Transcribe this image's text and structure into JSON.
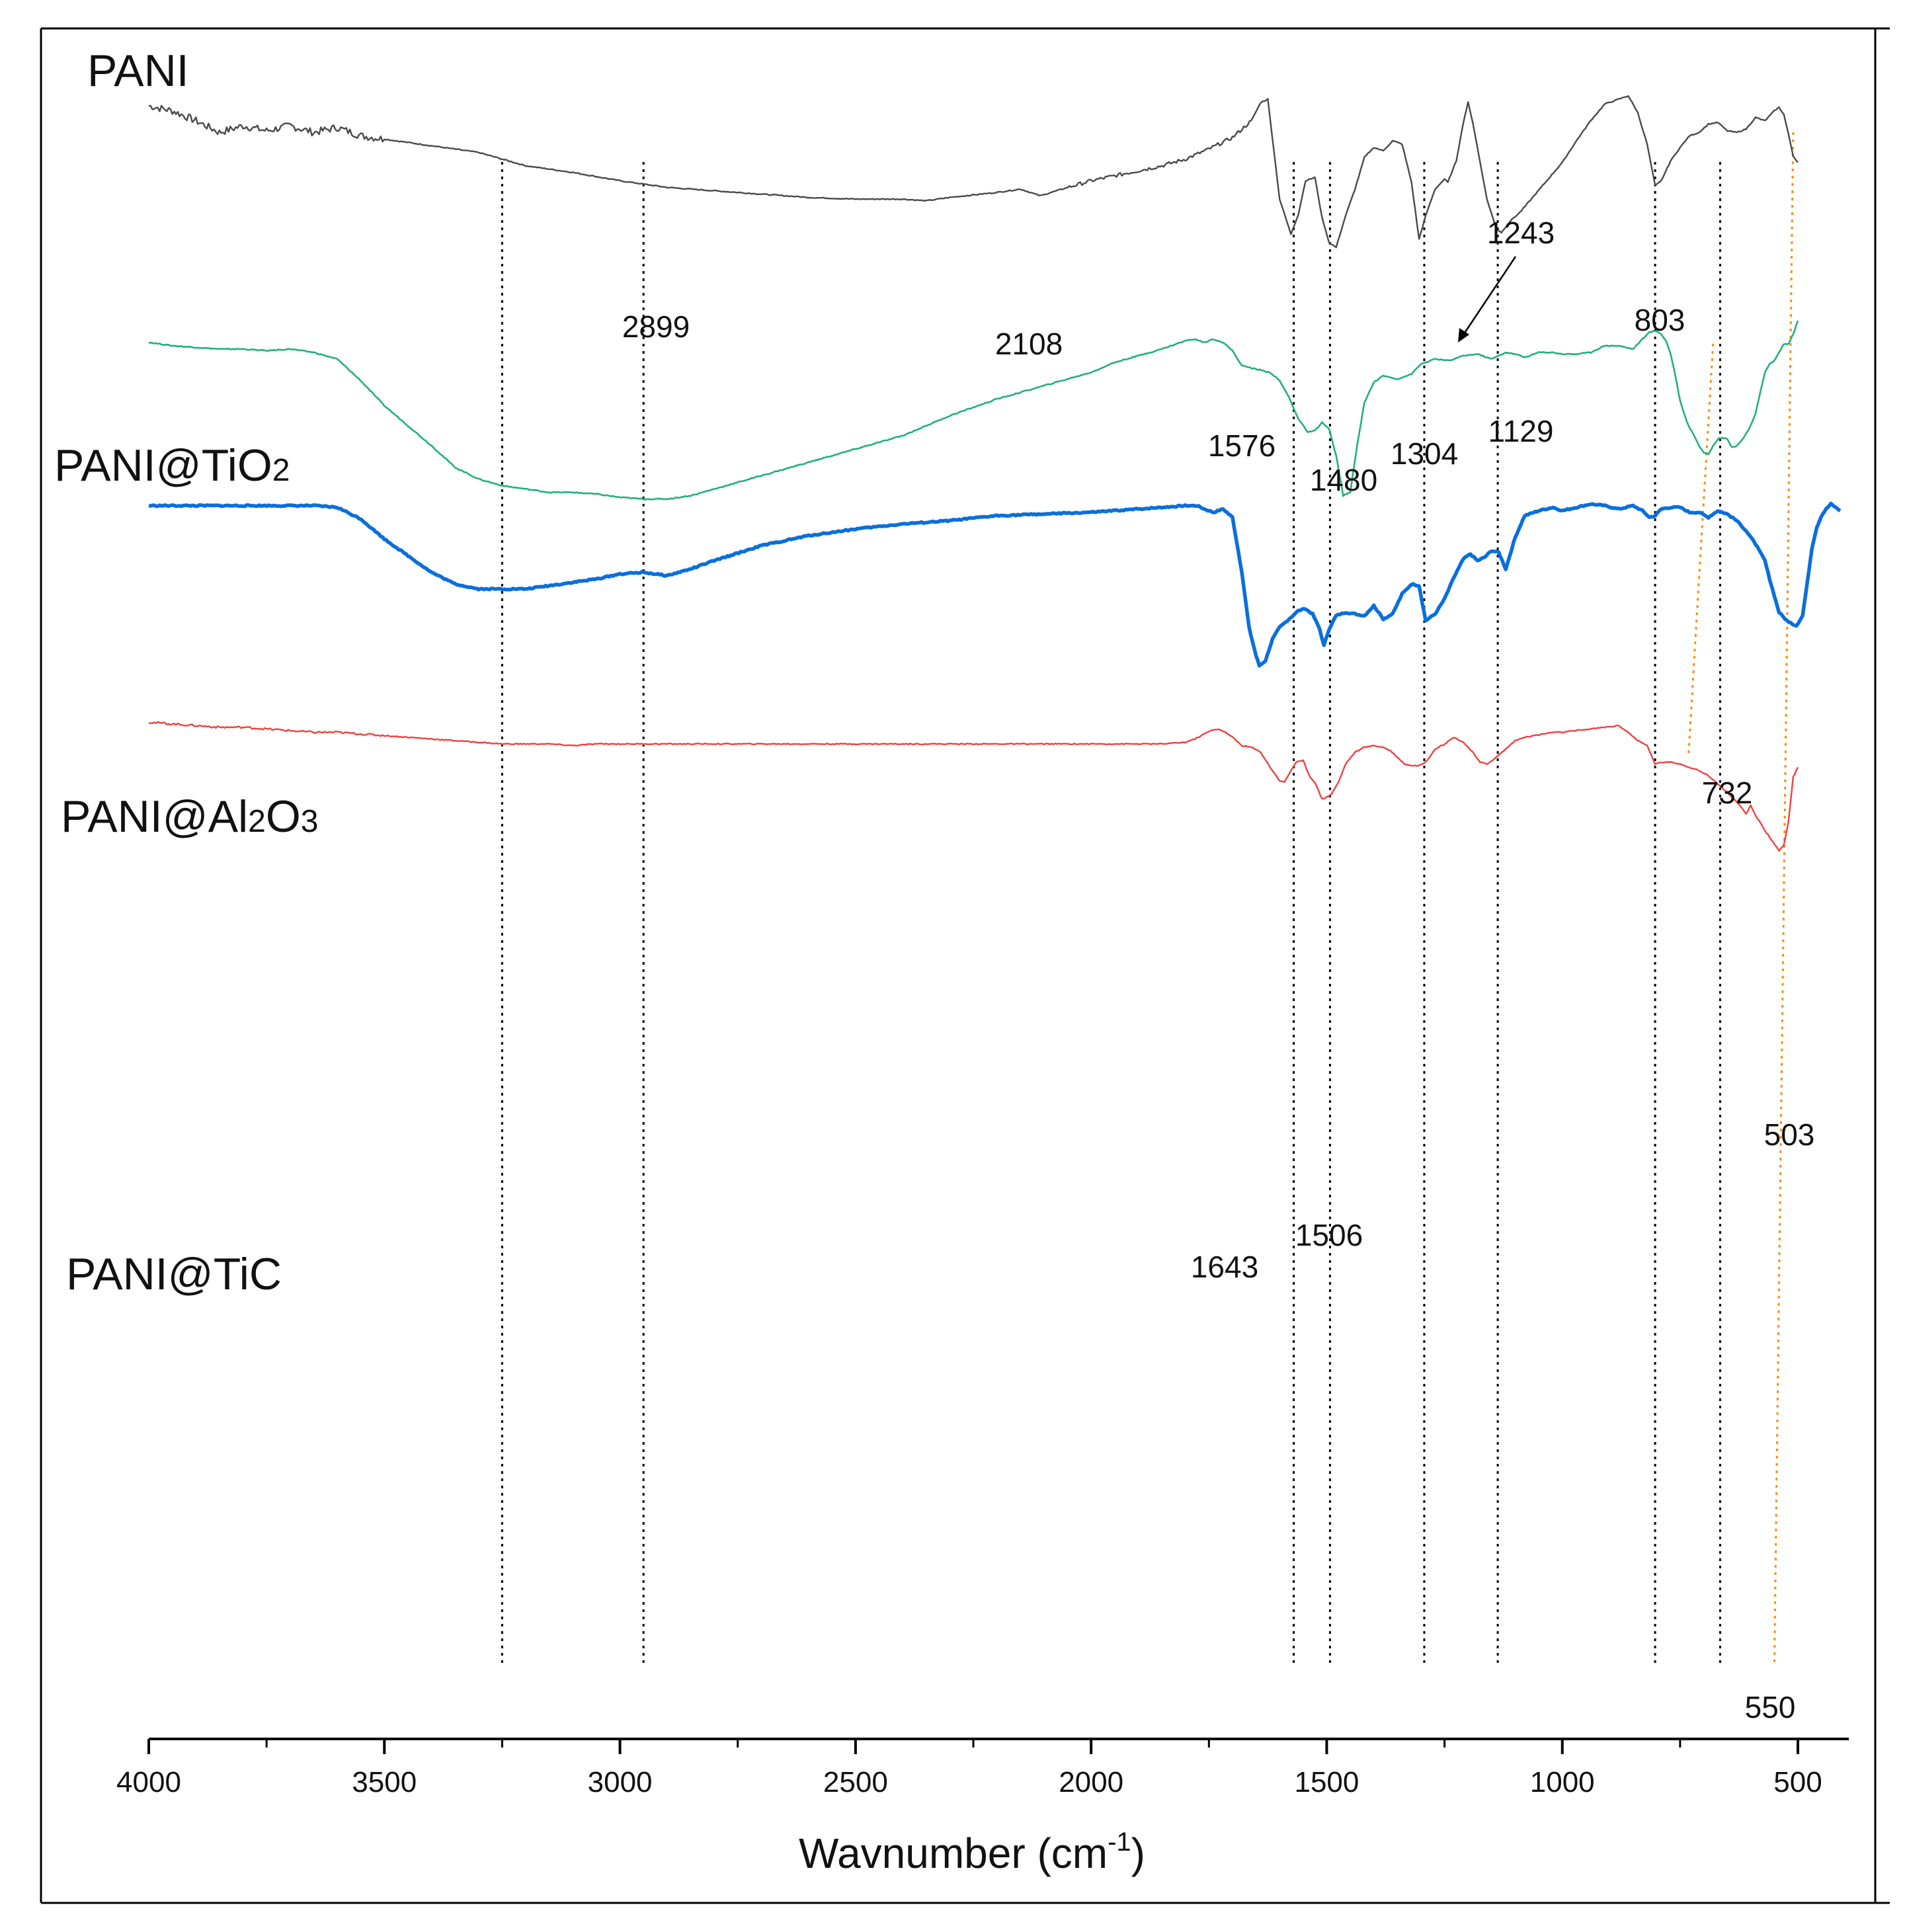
{
  "chart_data": {
    "type": "line",
    "xlabel": "Wavnumber (cm",
    "xlabel_sup": "-1",
    "xlabel_close": ")",
    "xlim": [
      4000,
      400
    ],
    "x_reversed": true,
    "x_ticks": [
      4000,
      3500,
      3000,
      2500,
      2000,
      1500,
      1000,
      500
    ],
    "x_tick_labels": [
      "4000",
      "3500",
      "3000",
      "2500",
      "2000",
      "1500",
      "1000",
      "500"
    ],
    "y_axis_shown": false,
    "y_units": "relative transmittance, curves vertically offset",
    "grid": false,
    "reference_lines": [
      {
        "x": 3250,
        "style": "dotted",
        "color": "#000000"
      },
      {
        "x": 2950,
        "style": "dotted",
        "color": "#000000"
      },
      {
        "x": 1570,
        "style": "dotted",
        "color": "#000000"
      },
      {
        "x": 1493,
        "style": "dotted",
        "color": "#000000"
      },
      {
        "x": 1293,
        "style": "dotted",
        "color": "#000000"
      },
      {
        "x": 1137,
        "style": "dotted",
        "color": "#000000"
      },
      {
        "x": 803,
        "style": "dotted",
        "color": "#000000"
      },
      {
        "x": 665,
        "style": "dotted",
        "color": "#000000"
      },
      {
        "x": 550,
        "x_top": 510,
        "style": "dotted",
        "color": "#ff8c00"
      },
      {
        "x": 732,
        "x_top": 680,
        "style": "dotted",
        "color": "#ff8c00",
        "segment": "upper"
      }
    ],
    "series": [
      {
        "name": "PANI",
        "color": "#4a4a4a",
        "x": [
          4000,
          3950,
          3900,
          3850,
          3800,
          3750,
          3700,
          3650,
          3600,
          3550,
          3500,
          3400,
          3300,
          3250,
          3200,
          3100,
          3000,
          2950,
          2899,
          2800,
          2700,
          2600,
          2500,
          2400,
          2350,
          2300,
          2200,
          2150,
          2108,
          2050,
          2000,
          1950,
          1900,
          1850,
          1800,
          1750,
          1700,
          1660,
          1640,
          1625,
          1600,
          1576,
          1560,
          1545,
          1525,
          1510,
          1495,
          1480,
          1460,
          1440,
          1420,
          1400,
          1380,
          1360,
          1340,
          1320,
          1304,
          1290,
          1270,
          1250,
          1243,
          1225,
          1210,
          1200,
          1190,
          1175,
          1160,
          1140,
          1129,
          1110,
          1090,
          1060,
          1030,
          1000,
          970,
          940,
          910,
          880,
          860,
          840,
          820,
          803,
          790,
          770,
          750,
          730,
          710,
          690,
          670,
          650,
          630,
          610,
          590,
          570,
          550,
          540,
          530,
          520,
          510,
          500
        ],
        "y": [
          0.0,
          -0.3,
          -0.9,
          -1.6,
          -1.2,
          -1.5,
          -1.2,
          -1.6,
          -1.3,
          -1.8,
          -2.0,
          -2.4,
          -2.8,
          -3.2,
          -3.6,
          -4.0,
          -4.5,
          -4.7,
          -4.9,
          -5.1,
          -5.3,
          -5.5,
          -5.6,
          -5.6,
          -5.7,
          -5.5,
          -5.2,
          -5.0,
          -5.4,
          -4.9,
          -4.5,
          -4.2,
          -3.9,
          -3.6,
          -3.2,
          -2.6,
          -1.9,
          -0.9,
          0.2,
          0.4,
          -5.6,
          -7.7,
          -6.5,
          -4.5,
          -4.3,
          -6.7,
          -8.2,
          -8.5,
          -6.6,
          -5.0,
          -3.1,
          -2.5,
          -2.7,
          -2.1,
          -2.3,
          -4.6,
          -8.0,
          -6.6,
          -5.0,
          -4.4,
          -4.6,
          -3.3,
          -1.0,
          0.2,
          -1.0,
          -3.3,
          -5.6,
          -7.4,
          -7.6,
          -6.9,
          -6.4,
          -5.4,
          -4.4,
          -3.4,
          -2.1,
          -0.9,
          0.1,
          0.4,
          0.6,
          -0.4,
          -2.3,
          -4.8,
          -4.5,
          -3.3,
          -2.5,
          -1.8,
          -1.6,
          -1.1,
          -1.0,
          -1.5,
          -1.6,
          -1.4,
          -0.7,
          -0.9,
          -0.3,
          -0.1,
          -0.5,
          -1.7,
          -3.0,
          -3.4
        ]
      },
      {
        "name": "PANI@TiO₂",
        "color": "#21b07a",
        "x": [
          4000,
          3950,
          3900,
          3850,
          3800,
          3750,
          3700,
          3650,
          3600,
          3550,
          3500,
          3400,
          3350,
          3300,
          3250,
          3200,
          3150,
          3100,
          3050,
          3000,
          2950,
          2900,
          2850,
          2800,
          2700,
          2600,
          2500,
          2400,
          2300,
          2200,
          2100,
          2000,
          1950,
          1900,
          1850,
          1800,
          1780,
          1760,
          1740,
          1720,
          1700,
          1680,
          1650,
          1620,
          1600,
          1580,
          1560,
          1540,
          1525,
          1510,
          1495,
          1480,
          1465,
          1450,
          1435,
          1420,
          1400,
          1380,
          1350,
          1320,
          1300,
          1270,
          1240,
          1210,
          1180,
          1150,
          1120,
          1100,
          1080,
          1050,
          1020,
          1000,
          970,
          940,
          910,
          880,
          850,
          830,
          815,
          803,
          790,
          780,
          770,
          760,
          750,
          740,
          732,
          720,
          710,
          700,
          690,
          680,
          670,
          660,
          650,
          640,
          630,
          620,
          610,
          600,
          590,
          580,
          570,
          560,
          550,
          540,
          530,
          520,
          510,
          500
        ],
        "y": [
          -14.2,
          -14.4,
          -14.5,
          -14.6,
          -14.6,
          -14.7,
          -14.6,
          -14.8,
          -15.2,
          -16.5,
          -18.0,
          -20.4,
          -21.7,
          -22.4,
          -22.8,
          -23.0,
          -23.2,
          -23.2,
          -23.3,
          -23.5,
          -23.6,
          -23.6,
          -23.4,
          -23.0,
          -22.2,
          -21.4,
          -20.6,
          -19.8,
          -18.6,
          -17.6,
          -16.8,
          -16.0,
          -15.4,
          -15.0,
          -14.6,
          -14.1,
          -14.0,
          -14.2,
          -14.0,
          -14.2,
          -14.7,
          -15.6,
          -15.8,
          -16.0,
          -16.5,
          -17.5,
          -18.8,
          -19.6,
          -19.5,
          -19.0,
          -19.4,
          -21.0,
          -23.4,
          -23.2,
          -20.3,
          -17.8,
          -16.6,
          -16.2,
          -16.4,
          -16.1,
          -15.5,
          -15.2,
          -15.3,
          -15.0,
          -14.9,
          -15.2,
          -14.8,
          -14.9,
          -15.1,
          -14.8,
          -14.8,
          -14.9,
          -14.9,
          -14.8,
          -14.4,
          -14.4,
          -14.6,
          -14.0,
          -13.6,
          -13.5,
          -13.7,
          -14.1,
          -14.9,
          -16.2,
          -17.7,
          -18.6,
          -19.2,
          -19.8,
          -20.4,
          -20.8,
          -20.9,
          -20.4,
          -20.0,
          -19.9,
          -20.0,
          -20.5,
          -20.4,
          -20.1,
          -19.7,
          -19.2,
          -18.5,
          -17.2,
          -16.0,
          -15.5,
          -15.3,
          -14.8,
          -14.3,
          -14.3,
          -13.7,
          -12.9
        ]
      },
      {
        "name": "PANI@Al₂O₃",
        "color": "#0a6fdc",
        "x": [
          4000,
          3950,
          3900,
          3850,
          3800,
          3750,
          3700,
          3650,
          3600,
          3550,
          3500,
          3450,
          3400,
          3350,
          3300,
          3250,
          3200,
          3150,
          3100,
          3050,
          3000,
          2950,
          2900,
          2850,
          2800,
          2700,
          2600,
          2500,
          2400,
          2300,
          2200,
          2100,
          2000,
          1950,
          1900,
          1850,
          1800,
          1775,
          1760,
          1740,
          1720,
          1700,
          1680,
          1665,
          1650,
          1643,
          1630,
          1615,
          1600,
          1580,
          1560,
          1545,
          1530,
          1515,
          1506,
          1495,
          1480,
          1460,
          1440,
          1420,
          1400,
          1380,
          1360,
          1340,
          1320,
          1304,
          1290,
          1270,
          1250,
          1230,
          1210,
          1195,
          1180,
          1165,
          1150,
          1135,
          1120,
          1100,
          1080,
          1050,
          1020,
          1000,
          970,
          940,
          910,
          880,
          850,
          830,
          815,
          803,
          790,
          770,
          750,
          730,
          710,
          690,
          670,
          650,
          630,
          610,
          590,
          570,
          560,
          550,
          540,
          520,
          503,
          490,
          480,
          470,
          460,
          450,
          440,
          430,
          420,
          410
        ],
        "y": [
          -24.0,
          -24.0,
          -24.0,
          -24.0,
          -24.0,
          -24.0,
          -24.0,
          -24.0,
          -24.1,
          -24.8,
          -26.0,
          -27.0,
          -28.0,
          -28.7,
          -29.0,
          -29.0,
          -29.0,
          -28.8,
          -28.6,
          -28.4,
          -28.1,
          -28.0,
          -28.2,
          -27.8,
          -27.3,
          -26.4,
          -25.8,
          -25.4,
          -25.1,
          -24.9,
          -24.6,
          -24.5,
          -24.4,
          -24.3,
          -24.2,
          -24.1,
          -24.0,
          -24.0,
          -24.2,
          -24.4,
          -24.2,
          -24.7,
          -28.0,
          -31.3,
          -33.0,
          -33.6,
          -33.3,
          -32.0,
          -31.3,
          -30.8,
          -30.3,
          -30.2,
          -30.5,
          -31.4,
          -32.4,
          -31.4,
          -30.6,
          -30.4,
          -30.5,
          -30.6,
          -30.0,
          -30.8,
          -30.5,
          -29.3,
          -28.7,
          -28.8,
          -30.9,
          -30.5,
          -29.6,
          -28.3,
          -27.2,
          -26.9,
          -27.3,
          -27.1,
          -26.7,
          -26.8,
          -27.8,
          -25.9,
          -24.6,
          -24.3,
          -24.1,
          -24.3,
          -24.1,
          -23.9,
          -24.0,
          -24.2,
          -24.0,
          -24.3,
          -24.7,
          -24.6,
          -24.2,
          -24.1,
          -24.1,
          -24.4,
          -24.4,
          -24.7,
          -24.3,
          -24.5,
          -24.9,
          -25.5,
          -26.3,
          -27.3,
          -28.4,
          -29.4,
          -30.4,
          -31.0,
          -31.2,
          -30.6,
          -28.6,
          -26.5,
          -25.3,
          -24.6,
          -24.2,
          -23.9,
          -24.1,
          -24.3
        ]
      },
      {
        "name": "PANI@TiC",
        "color": "#f04040",
        "x": [
          4000,
          3950,
          3900,
          3850,
          3800,
          3750,
          3700,
          3650,
          3600,
          3550,
          3500,
          3450,
          3400,
          3350,
          3300,
          3250,
          3200,
          3150,
          3100,
          3050,
          3000,
          2950,
          2900,
          2800,
          2700,
          2600,
          2500,
          2400,
          2300,
          2200,
          2100,
          2000,
          1950,
          1900,
          1850,
          1800,
          1780,
          1760,
          1745,
          1730,
          1715,
          1700,
          1680,
          1660,
          1640,
          1620,
          1600,
          1590,
          1578,
          1565,
          1550,
          1535,
          1525,
          1510,
          1500,
          1490,
          1475,
          1460,
          1440,
          1420,
          1400,
          1380,
          1365,
          1350,
          1335,
          1320,
          1305,
          1290,
          1270,
          1250,
          1230,
          1210,
          1190,
          1175,
          1160,
          1140,
          1120,
          1100,
          1080,
          1060,
          1040,
          1020,
          1000,
          970,
          940,
          910,
          880,
          860,
          840,
          820,
          803,
          790,
          770,
          750,
          730,
          710,
          690,
          670,
          650,
          630,
          620,
          610,
          600,
          590,
          580,
          570,
          560,
          550,
          540,
          530,
          520,
          510,
          500
        ],
        "y": [
          -37.0,
          -37.1,
          -37.2,
          -37.3,
          -37.3,
          -37.4,
          -37.5,
          -37.6,
          -37.6,
          -37.7,
          -37.8,
          -37.9,
          -38.0,
          -38.1,
          -38.2,
          -38.3,
          -38.3,
          -38.3,
          -38.4,
          -38.3,
          -38.3,
          -38.3,
          -38.3,
          -38.3,
          -38.3,
          -38.3,
          -38.3,
          -38.3,
          -38.3,
          -38.3,
          -38.3,
          -38.3,
          -38.3,
          -38.3,
          -38.3,
          -38.2,
          -38.0,
          -37.7,
          -37.5,
          -37.4,
          -37.6,
          -37.9,
          -38.4,
          -38.5,
          -38.8,
          -39.7,
          -40.5,
          -40.6,
          -40.0,
          -39.4,
          -39.3,
          -40.3,
          -40.6,
          -41.6,
          -41.5,
          -41.3,
          -40.6,
          -39.5,
          -38.8,
          -38.5,
          -38.4,
          -38.5,
          -38.7,
          -39.1,
          -39.5,
          -39.6,
          -39.6,
          -39.4,
          -38.6,
          -38.3,
          -37.9,
          -38.2,
          -38.8,
          -39.4,
          -39.5,
          -39.1,
          -38.6,
          -38.1,
          -37.9,
          -37.8,
          -37.7,
          -37.6,
          -37.6,
          -37.5,
          -37.4,
          -37.3,
          -37.2,
          -37.6,
          -38.1,
          -38.4,
          -39.5,
          -39.4,
          -39.4,
          -39.5,
          -39.7,
          -39.9,
          -40.2,
          -40.7,
          -41.2,
          -41.8,
          -42.1,
          -42.5,
          -42.0,
          -42.6,
          -43.0,
          -43.5,
          -43.9,
          -44.3,
          -44.7,
          -44.4,
          -43.0,
          -40.3,
          -39.7
        ]
      }
    ],
    "annotations": [
      {
        "text": "2899",
        "x": 2899,
        "series": "PANI"
      },
      {
        "text": "2108",
        "x": 2108,
        "series": "PANI"
      },
      {
        "text": "1576",
        "x": 1576,
        "series": "PANI"
      },
      {
        "text": "1480",
        "x": 1480,
        "series": "PANI"
      },
      {
        "text": "1304",
        "x": 1304,
        "series": "PANI"
      },
      {
        "text": "1243",
        "x": 1243,
        "series": "PANI",
        "arrow": true
      },
      {
        "text": "1129",
        "x": 1129,
        "series": "PANI"
      },
      {
        "text": "803",
        "x": 803,
        "series": "PANI"
      },
      {
        "text": "732",
        "x": 732,
        "series": "PANI@TiO₂"
      },
      {
        "text": "1643",
        "x": 1643,
        "series": "PANI@Al₂O₃"
      },
      {
        "text": "1506",
        "x": 1506,
        "series": "PANI@Al₂O₃"
      },
      {
        "text": "503",
        "x": 503,
        "series": "PANI@Al₂O₃"
      },
      {
        "text": "550",
        "x": 550,
        "series": "PANI@TiC"
      }
    ]
  },
  "labels": {
    "pani": "PANI",
    "pani_tio2_main": "PANI@TiO",
    "pani_tio2_sub": "2",
    "pani_al2o3_a": "PANI@Al",
    "pani_al2o3_sub1": "2",
    "pani_al2o3_b": "O",
    "pani_al2o3_sub2": "3",
    "pani_tic": "PANI@TiC",
    "peak_2899": "2899",
    "peak_2108": "2108",
    "peak_1576": "1576",
    "peak_1480": "1480",
    "peak_1304": "1304",
    "peak_1243": "1243",
    "peak_1129": "1129",
    "peak_803": "803",
    "peak_732": "732",
    "peak_1643": "1643",
    "peak_1506": "1506",
    "peak_503": "503",
    "peak_550": "550"
  }
}
